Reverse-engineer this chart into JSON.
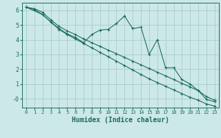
{
  "xlabel": "Humidex (Indice chaleur)",
  "background_color": "#cce8e8",
  "grid_color": "#aacccc",
  "line_color": "#1a6b5a",
  "xlim": [
    -0.5,
    23.5
  ],
  "ylim": [
    -0.6,
    6.5
  ],
  "yticks": [
    0,
    1,
    2,
    3,
    4,
    5,
    6
  ],
  "ytick_labels": [
    "-0",
    "1",
    "2",
    "3",
    "4",
    "5",
    "6"
  ],
  "xticks": [
    0,
    1,
    2,
    3,
    4,
    5,
    6,
    7,
    8,
    9,
    10,
    11,
    12,
    13,
    14,
    15,
    16,
    17,
    18,
    19,
    20,
    21,
    22,
    23
  ],
  "series": [
    {
      "x": [
        0,
        1,
        2,
        3,
        4,
        5,
        6,
        7,
        8,
        9,
        10,
        11,
        12,
        13,
        14,
        15,
        16,
        17,
        18,
        19,
        20,
        21,
        22,
        23
      ],
      "y": [
        6.2,
        6.1,
        5.85,
        5.35,
        4.9,
        4.6,
        4.35,
        4.05,
        3.8,
        3.55,
        3.3,
        3.05,
        2.8,
        2.55,
        2.3,
        2.05,
        1.8,
        1.55,
        1.3,
        1.05,
        0.8,
        0.55,
        0.15,
        -0.1
      ]
    },
    {
      "x": [
        0,
        1,
        2,
        3,
        4,
        5,
        6,
        7,
        8,
        9,
        10,
        11,
        12,
        13,
        14,
        15,
        16,
        17,
        18,
        19,
        20,
        21,
        22,
        23
      ],
      "y": [
        6.2,
        6.05,
        5.7,
        5.2,
        4.7,
        4.35,
        4.05,
        3.75,
        3.45,
        3.15,
        2.85,
        2.55,
        2.25,
        1.95,
        1.65,
        1.35,
        1.1,
        0.85,
        0.6,
        0.35,
        0.1,
        -0.1,
        -0.35,
        -0.5
      ]
    },
    {
      "x": [
        0,
        2,
        3,
        4,
        5,
        6,
        7,
        8,
        9,
        10,
        11,
        12,
        13,
        14,
        15,
        16,
        17,
        18,
        19,
        20,
        21,
        22,
        23
      ],
      "y": [
        6.2,
        5.7,
        5.2,
        4.75,
        4.4,
        4.15,
        3.8,
        4.35,
        4.65,
        4.7,
        5.1,
        5.6,
        4.75,
        4.85,
        3.0,
        4.0,
        2.1,
        2.1,
        1.3,
        1.0,
        0.55,
        -0.05,
        -0.2
      ]
    }
  ]
}
